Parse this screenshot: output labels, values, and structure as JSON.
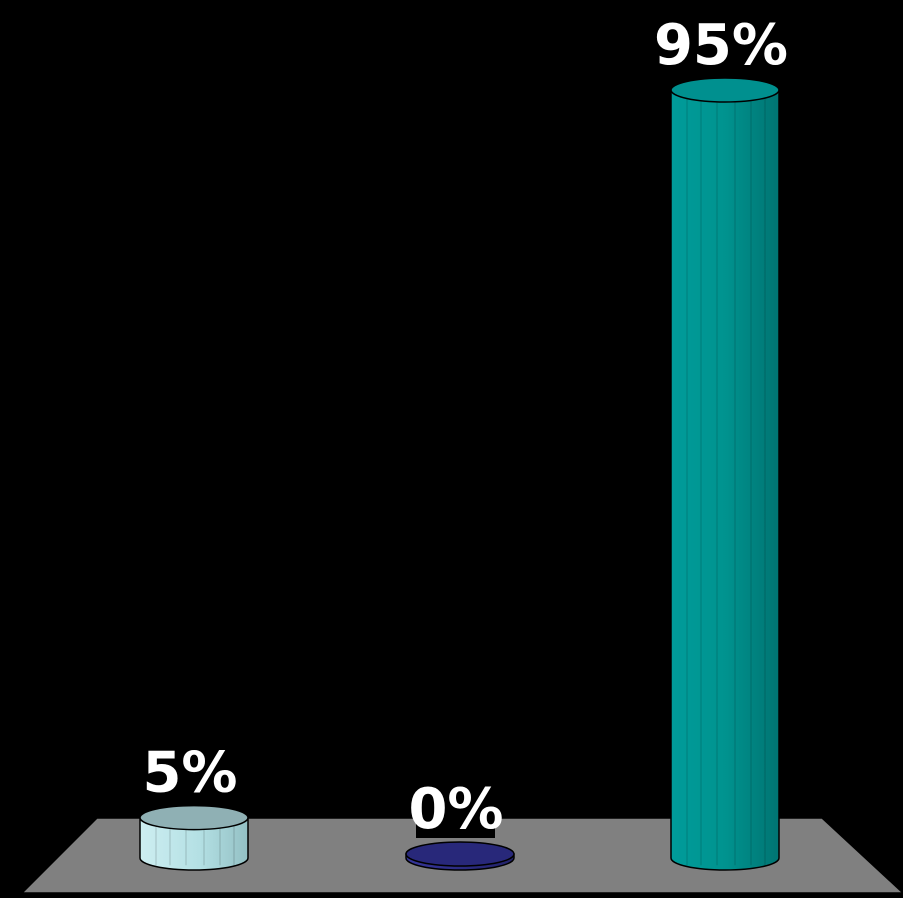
{
  "chart_data": {
    "type": "bar",
    "style": "3d-cylinder",
    "categories": [
      "",
      "",
      ""
    ],
    "values": [
      5,
      0,
      95
    ],
    "data_labels": [
      "5%",
      "0%",
      "95%"
    ],
    "unit": "%",
    "ylim": [
      0,
      95
    ],
    "grid": false,
    "legend": "none",
    "colors": {
      "background": "#000000",
      "floor": "#808080",
      "bars": [
        "#b4e0e4",
        "#28287a",
        "#00908f"
      ],
      "label_text": "#ffffff"
    }
  }
}
